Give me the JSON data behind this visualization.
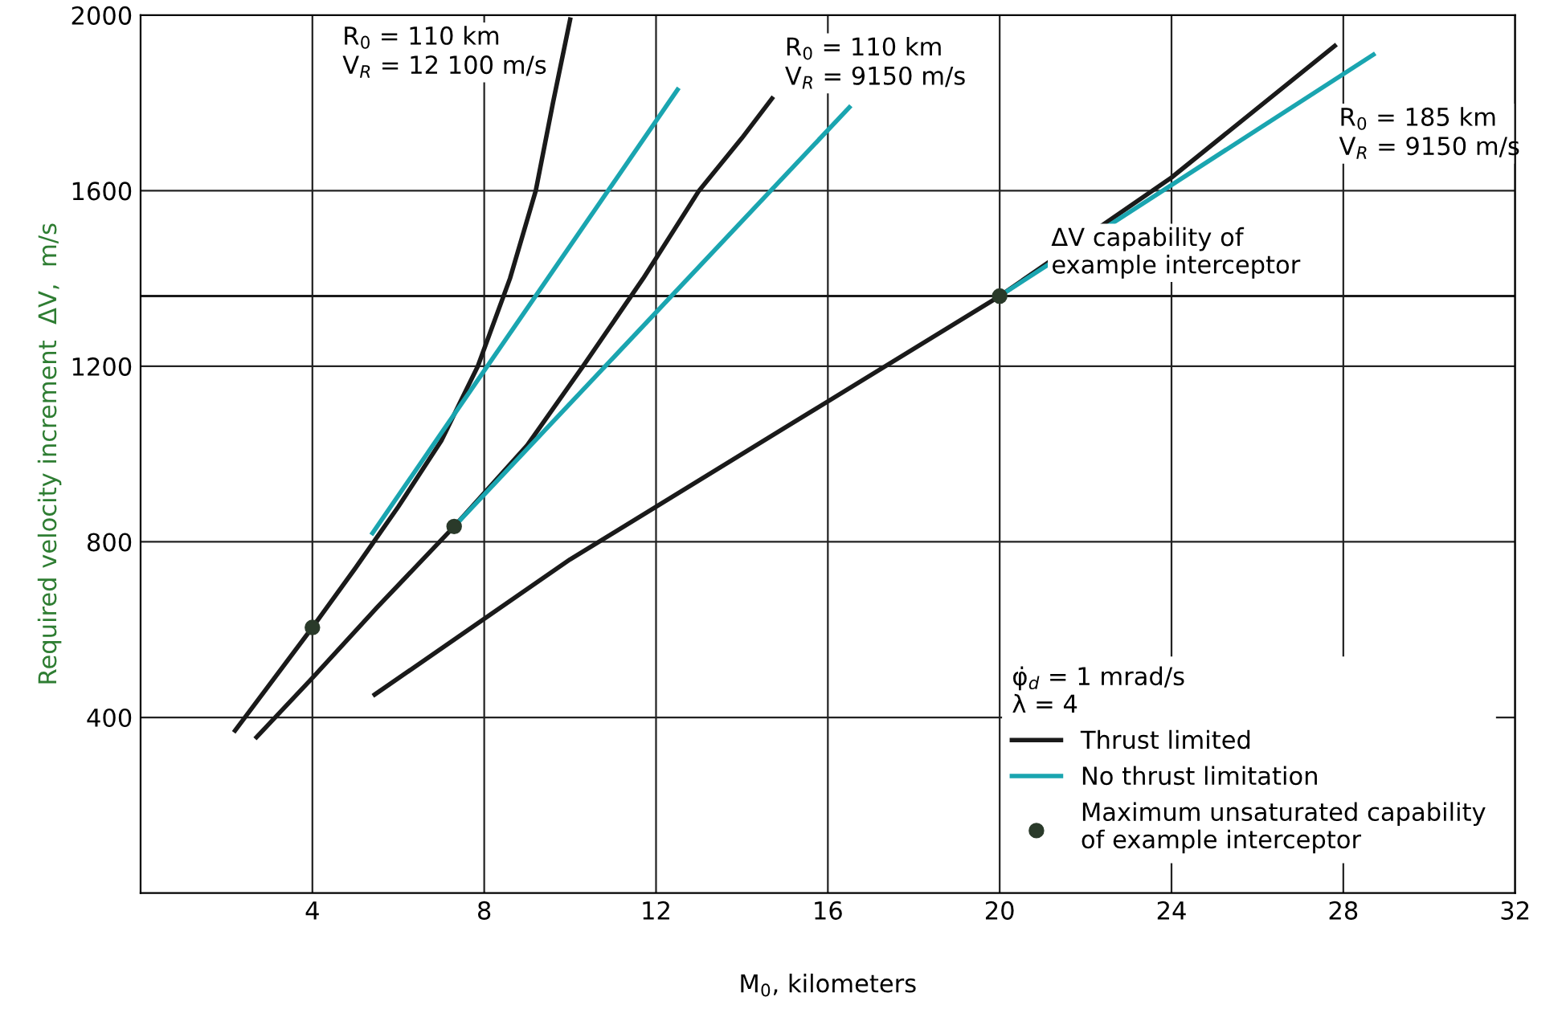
{
  "chart_data": {
    "type": "line",
    "xlabel": "M$_{0}$, kilometers",
    "ylabel": "Required velocity increment  ΔV,  m/s",
    "xlim": [
      0,
      32
    ],
    "xticks": [
      4,
      8,
      12,
      16,
      20,
      24,
      28,
      32
    ],
    "ylim": [
      0,
      2000
    ],
    "yticks": [
      400,
      800,
      1200,
      1600,
      2000
    ],
    "grid": true,
    "legend": "bottom right",
    "legend_title": "φ̇$_{d}$ = 1 mrad/s\nλ = 4",
    "series": [
      {
        "name": "Thrust limited",
        "color": "#1a1a1a",
        "x": [
          2.2,
          4,
          5,
          6,
          7,
          7.85,
          8.6,
          9.2,
          9.6,
          10.0
        ],
        "values": [
          370,
          605,
          740,
          880,
          1030,
          1200,
          1400,
          1600,
          1800,
          1990
        ]
      },
      {
        "color": "#1a1a1a",
        "x": [
          2.7,
          4,
          5.5,
          7.3,
          9,
          10.3,
          11.7,
          13.0,
          14.0,
          14.7
        ],
        "values": [
          355,
          490,
          650,
          835,
          1020,
          1200,
          1400,
          1600,
          1720,
          1810
        ]
      },
      {
        "color": "#1a1a1a",
        "x": [
          5.45,
          10,
          15,
          20,
          24,
          27.8
        ],
        "values": [
          452,
          760,
          1060,
          1360,
          1630,
          1930
        ]
      },
      {
        "name": "No thrust limitation",
        "color": "#1aa5b0",
        "x": [
          5.4,
          12.5
        ],
        "values": [
          820,
          1830
        ]
      },
      {
        "color": "#1aa5b0",
        "x": [
          7.3,
          16.5
        ],
        "values": [
          835,
          1790
        ]
      },
      {
        "color": "#1aa5b0",
        "x": [
          20,
          28.7
        ],
        "values": [
          1360,
          1910
        ]
      },
      {
        "name": "Maximum unsaturated capability\nof example interceptor",
        "type": "scatter",
        "marker": "circle",
        "color": "#2a3a2a",
        "x": [
          4,
          7.3,
          20
        ],
        "values": [
          605,
          835,
          1360
        ]
      }
    ],
    "ref_lines": [
      {
        "axis": "y",
        "value": 1360,
        "label": "ΔV capability of\nexample interceptor",
        "color": "#1a1a1a"
      }
    ],
    "annotations": [
      {
        "text": "R$_{0}$ = 110 km\nV$_{R}$ = 12 100 m/s",
        "x": 10.0,
        "y": 1990
      },
      {
        "text": "R$_{0}$ = 110 km\nV$_{R}$ = 9150 m/s",
        "x": 14.7,
        "y": 1810
      },
      {
        "text": "R$_{0}$ = 185 km\nV$_{R}$ = 9150 m/s",
        "x": 27.8,
        "y": 1930
      }
    ]
  }
}
